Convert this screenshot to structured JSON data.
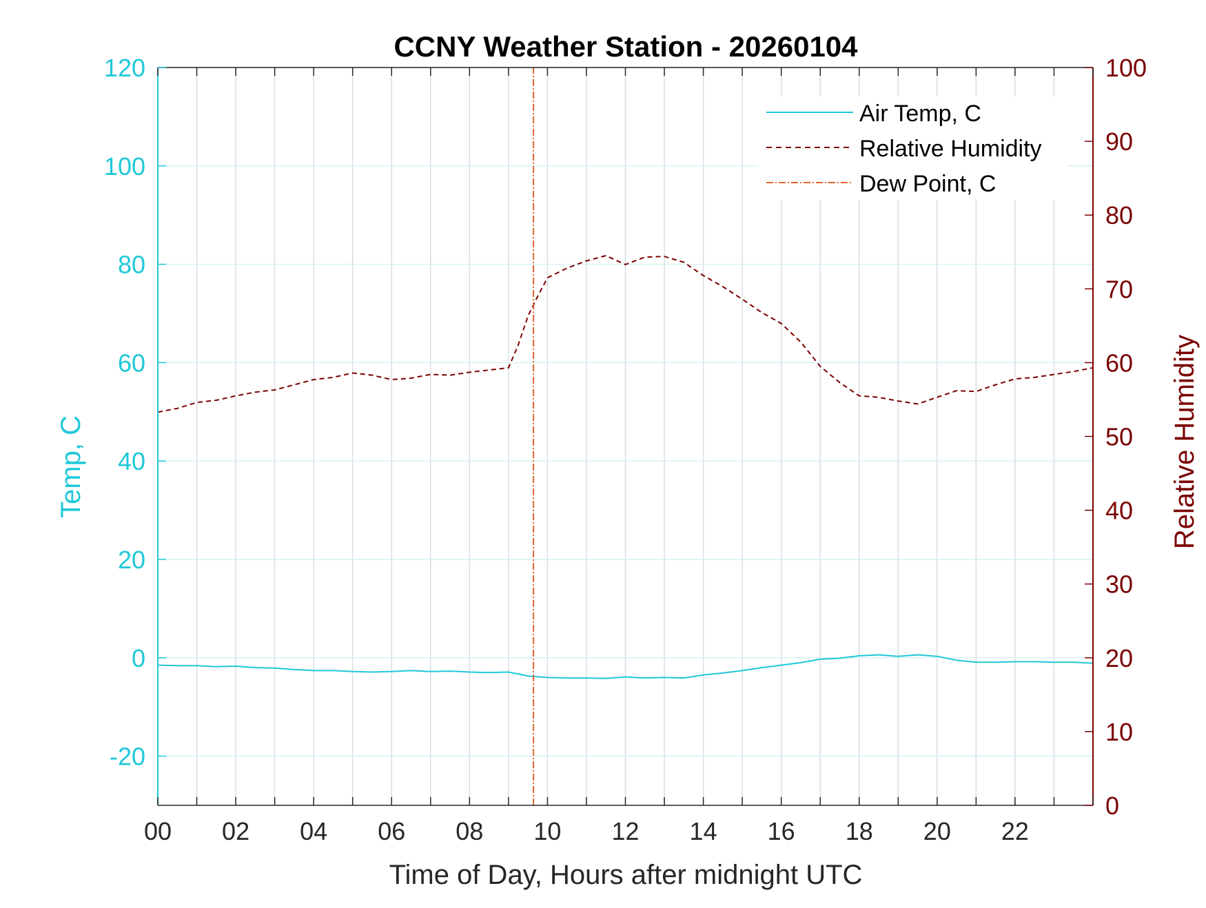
{
  "chart_data": {
    "type": "line",
    "title": "CCNY Weather Station - 20260104",
    "xlabel": "Time of Day, Hours after midnight UTC",
    "ylabel_left": "Temp, C",
    "ylabel_right": "Relative Humidity",
    "xlim": [
      0,
      24
    ],
    "ylim_left": [
      -30,
      120
    ],
    "ylim_right": [
      0,
      100
    ],
    "x_ticks": [
      0,
      2,
      4,
      6,
      8,
      10,
      12,
      14,
      16,
      18,
      20,
      22
    ],
    "x_tick_labels": [
      "00",
      "02",
      "04",
      "06",
      "08",
      "10",
      "12",
      "14",
      "16",
      "18",
      "20",
      "22"
    ],
    "y_left_ticks": [
      -20,
      0,
      20,
      40,
      60,
      80,
      100,
      120
    ],
    "y_right_ticks": [
      0,
      10,
      20,
      30,
      40,
      50,
      60,
      70,
      80,
      90,
      100
    ],
    "grid": true,
    "legend_position": "top-right",
    "colors": {
      "air_temp": "#1fc8d8",
      "relative_humidity": "#7a0000",
      "dew_point": "#e0622a",
      "left_axis": "#1fc8d8",
      "right_axis": "#7a0000",
      "grid_vertical": "#d9dde3",
      "grid_horizontal": "#d7f1f6"
    },
    "series": [
      {
        "name": "Air Temp, C",
        "axis": "left",
        "style": "solid",
        "x": [
          0,
          0.5,
          1,
          1.5,
          2,
          2.5,
          3,
          3.5,
          4,
          4.5,
          5,
          5.5,
          6,
          6.5,
          7,
          7.5,
          8,
          8.5,
          9,
          9.5,
          10,
          10.5,
          11,
          11.5,
          12,
          12.5,
          13,
          13.5,
          14,
          14.5,
          15,
          15.5,
          16,
          16.5,
          17,
          17.5,
          18,
          18.5,
          19,
          19.5,
          20,
          20.5,
          21,
          21.5,
          22,
          22.5,
          23,
          23.5,
          24
        ],
        "y": [
          -1.5,
          -1.6,
          -1.6,
          -1.8,
          -1.7,
          -2.0,
          -2.1,
          -2.4,
          -2.6,
          -2.6,
          -2.8,
          -2.9,
          -2.8,
          -2.6,
          -2.8,
          -2.7,
          -2.9,
          -3.0,
          -2.9,
          -3.7,
          -4.0,
          -4.1,
          -4.1,
          -4.2,
          -3.9,
          -4.1,
          -4.0,
          -4.1,
          -3.5,
          -3.1,
          -2.6,
          -2.0,
          -1.5,
          -1.0,
          -0.3,
          -0.1,
          0.4,
          0.6,
          0.3,
          0.6,
          0.3,
          -0.5,
          -0.9,
          -0.9,
          -0.8,
          -0.8,
          -0.9,
          -0.9,
          -1.1
        ]
      },
      {
        "name": "Relative Humidity",
        "axis": "right",
        "style": "dashed",
        "x": [
          0,
          0.5,
          1,
          1.5,
          2,
          2.5,
          3,
          3.5,
          4,
          4.5,
          5,
          5.5,
          6,
          6.5,
          7,
          7.5,
          8,
          8.5,
          9,
          9.25,
          9.5,
          9.75,
          10,
          10.5,
          11,
          11.5,
          12,
          12.5,
          13,
          13.5,
          14,
          14.5,
          15,
          15.5,
          16,
          16.5,
          17,
          17.5,
          18,
          18.5,
          19,
          19.5,
          20,
          20.5,
          21,
          21.5,
          22,
          22.5,
          23,
          23.5,
          24
        ],
        "y": [
          53.3,
          53.8,
          54.6,
          54.9,
          55.5,
          56.0,
          56.3,
          57.0,
          57.7,
          58.0,
          58.6,
          58.3,
          57.7,
          57.9,
          58.4,
          58.3,
          58.7,
          59.0,
          59.3,
          62.4,
          66.3,
          69.0,
          71.5,
          72.8,
          73.8,
          74.5,
          73.3,
          74.3,
          74.4,
          73.6,
          71.8,
          70.3,
          68.6,
          66.8,
          65.3,
          62.8,
          59.5,
          57.3,
          55.5,
          55.3,
          54.8,
          54.4,
          55.3,
          56.2,
          56.1,
          57.0,
          57.8,
          58.0,
          58.4,
          58.8,
          59.3
        ]
      },
      {
        "name": "Dew Point, C",
        "axis": "left",
        "style": "dash-dot",
        "x": [
          9.64,
          9.64
        ],
        "y": [
          -30,
          120
        ]
      }
    ]
  }
}
